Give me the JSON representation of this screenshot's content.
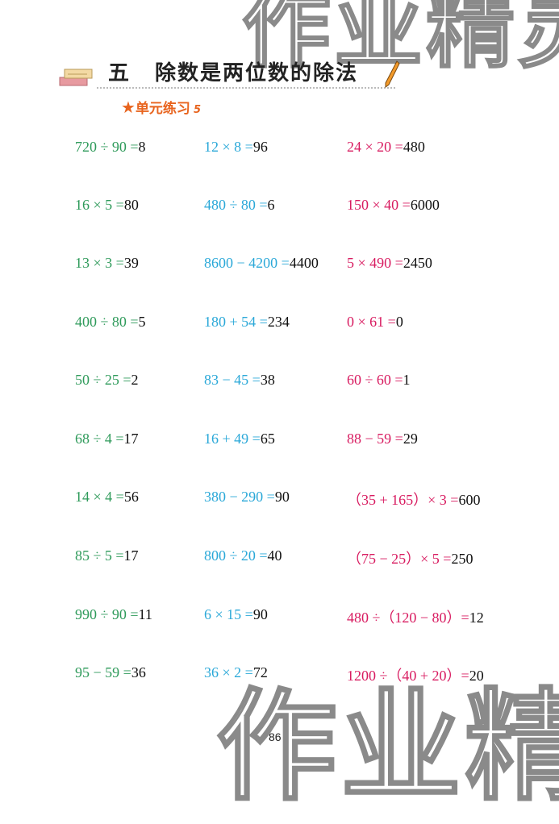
{
  "watermark": "作业精灵",
  "header": {
    "chapter_num": "五",
    "chapter_title": "除数是两位数的除法",
    "book_icon": "books-icon",
    "pencil_icon": "pencil-icon"
  },
  "section": {
    "icon": "star-icon",
    "title": "单元练习",
    "suffix": "5"
  },
  "colors": {
    "col1": "#2e9a5a",
    "col2": "#2aa8d8",
    "col3": "#d81b60",
    "section": "#e8641e"
  },
  "columns": [
    [
      {
        "q": "720 ÷ 90 =",
        "a": "8"
      },
      {
        "q": "16 × 5 =",
        "a": "80"
      },
      {
        "q": "13 × 3 =",
        "a": "39"
      },
      {
        "q": "400 ÷ 80 =",
        "a": "5"
      },
      {
        "q": "50 ÷ 25 =",
        "a": "2"
      },
      {
        "q": "68 ÷ 4 =",
        "a": "17"
      },
      {
        "q": "14 × 4 =",
        "a": "56"
      },
      {
        "q": "85 ÷ 5 =",
        "a": "17"
      },
      {
        "q": "990 ÷ 90 =",
        "a": "11"
      },
      {
        "q": "95 − 59 =",
        "a": "36"
      }
    ],
    [
      {
        "q": "12 × 8 =",
        "a": "96"
      },
      {
        "q": "480 ÷ 80 =",
        "a": "6"
      },
      {
        "q": "8600 − 4200 =",
        "a": "4400"
      },
      {
        "q": "180 + 54 =",
        "a": "234"
      },
      {
        "q": "83 − 45 =",
        "a": "38"
      },
      {
        "q": "16 + 49 =",
        "a": "65"
      },
      {
        "q": "380 − 290 =",
        "a": "90"
      },
      {
        "q": "800 ÷ 20 =",
        "a": "40"
      },
      {
        "q": "6 × 15 =",
        "a": "90"
      },
      {
        "q": "36 × 2 =",
        "a": "72"
      }
    ],
    [
      {
        "q": "24 × 20 =",
        "a": "480"
      },
      {
        "q": "150 × 40 =",
        "a": "6000"
      },
      {
        "q": "5 × 490 =",
        "a": "2450"
      },
      {
        "q": "0 × 61 =",
        "a": "0"
      },
      {
        "q": "60 ÷ 60 =",
        "a": "1"
      },
      {
        "q": "88 − 59 =",
        "a": "29"
      },
      {
        "q": "（35 + 165）× 3 =",
        "a": "600"
      },
      {
        "q": "（75 − 25）× 5 =",
        "a": "250"
      },
      {
        "q": "480 ÷（120 − 80）=",
        "a": "12"
      },
      {
        "q": "1200 ÷（40 + 20）=",
        "a": "20"
      }
    ]
  ],
  "page_number": "86"
}
